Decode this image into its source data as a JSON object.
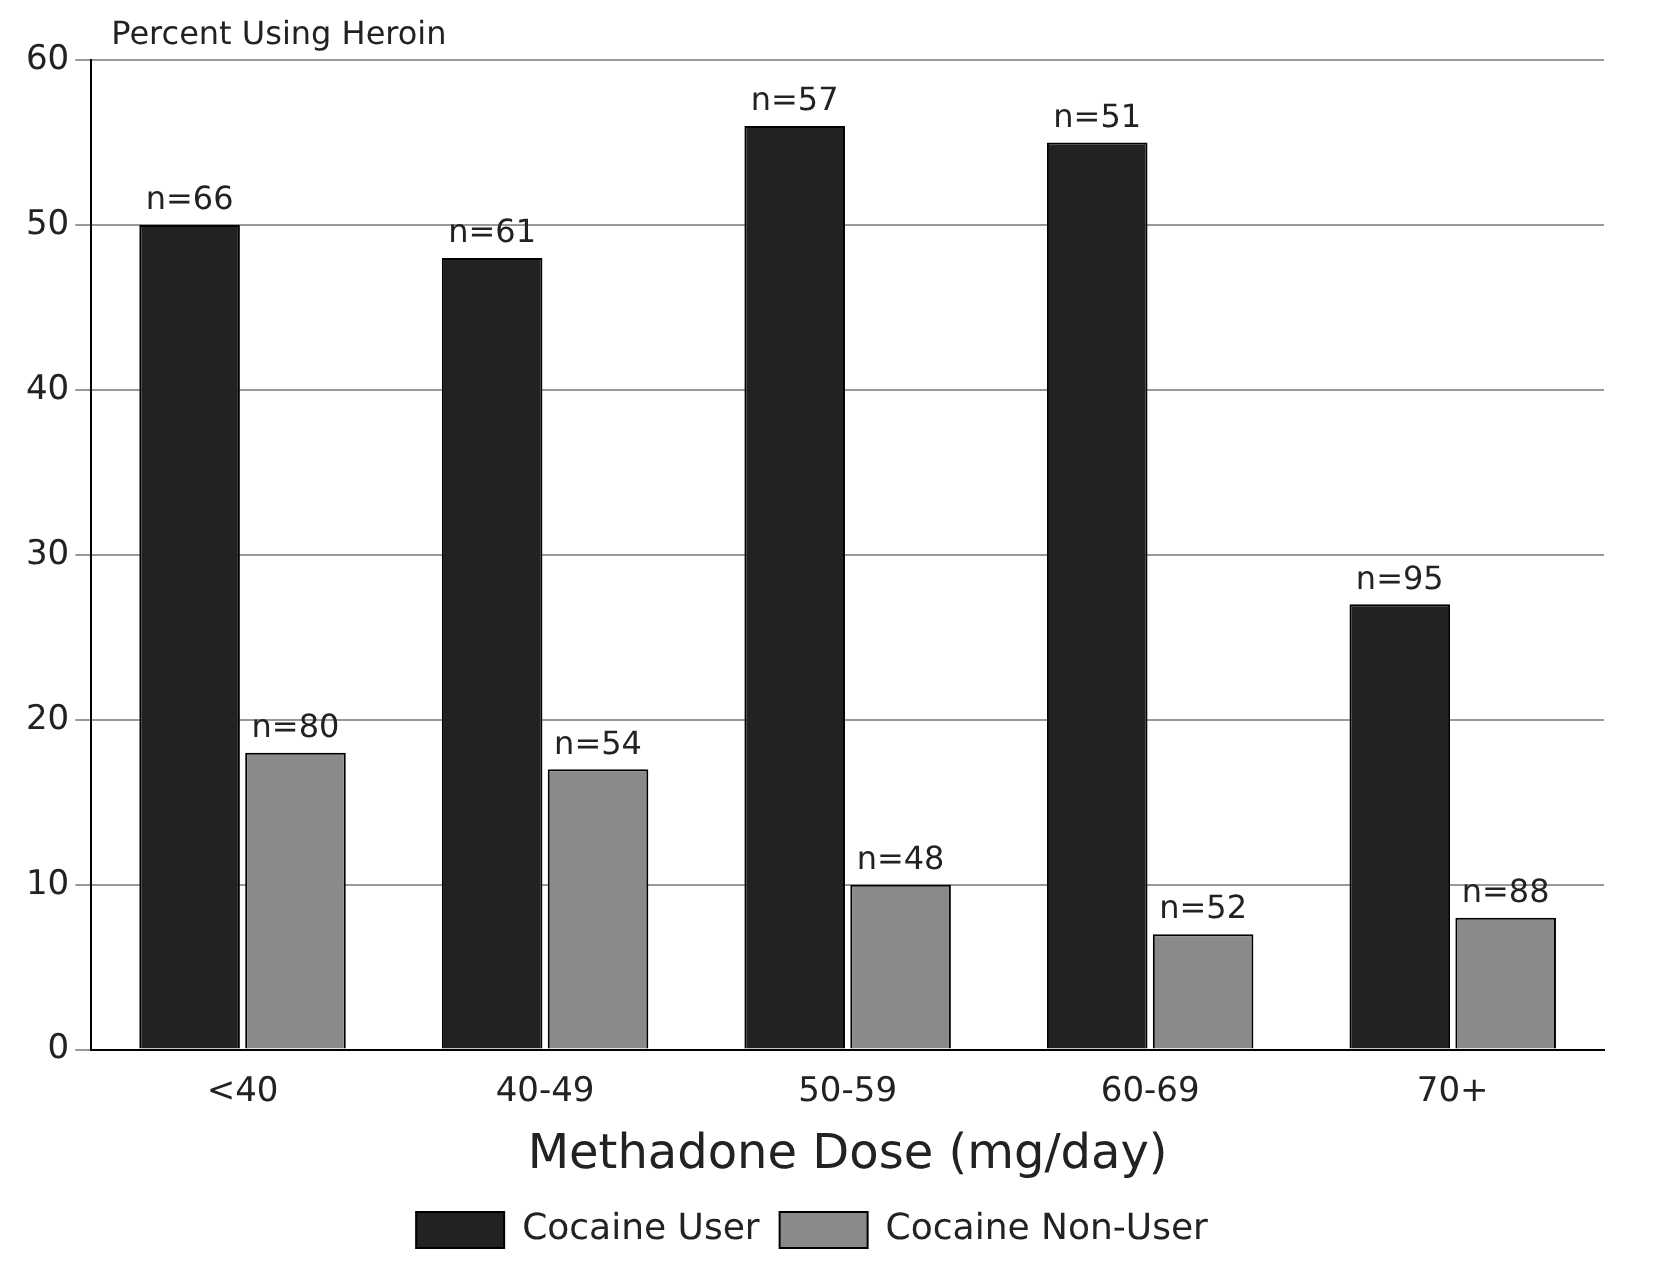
{
  "chart_data": {
    "type": "bar",
    "ylabel": "Percent Using Heroin",
    "xlabel": "Methadone Dose (mg/day)",
    "categories": [
      "<40",
      "40-49",
      "50-59",
      "60-69",
      "70+"
    ],
    "series": [
      {
        "name": "Cocaine User",
        "color": "#222222",
        "values": [
          50,
          48,
          56,
          55,
          27
        ]
      },
      {
        "name": "Cocaine Non-User",
        "color": "#8a8a8a",
        "values": [
          18,
          17,
          10,
          7,
          8
        ]
      }
    ],
    "annotations": [
      {
        "text": "n=66",
        "x": "<40",
        "y": 50
      },
      {
        "text": "n=61",
        "x": "40-49",
        "y": 48
      },
      {
        "text": "n=57",
        "x": "50-59",
        "y": 56
      },
      {
        "text": "n=51",
        "x": "60-69",
        "y": 55
      },
      {
        "text": "n=95",
        "x": "70+",
        "y": 27
      },
      {
        "text": "n=80",
        "x": "<40",
        "y": 18
      },
      {
        "text": "n=54",
        "x": "40-49",
        "y": 17
      },
      {
        "text": "n=48",
        "x": "50-59",
        "y": 10
      },
      {
        "text": "n=52",
        "x": "60-69",
        "y": 7
      },
      {
        "text": "n=88",
        "x": "70+",
        "y": 8
      }
    ],
    "ylim": [
      0,
      60
    ],
    "yticks": [
      0,
      10,
      20,
      30,
      40,
      50,
      60
    ],
    "grid": "y",
    "legend": "bottom"
  }
}
